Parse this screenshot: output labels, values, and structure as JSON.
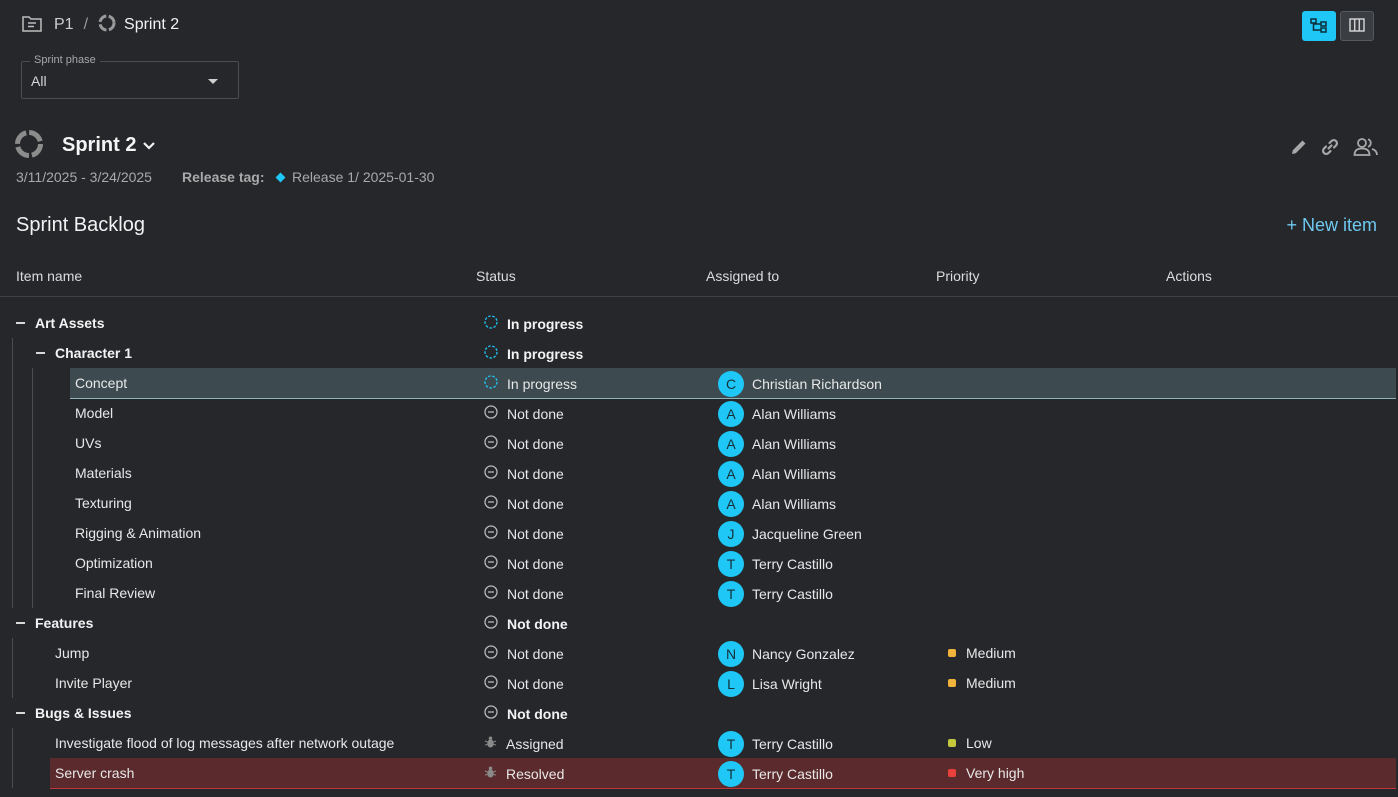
{
  "breadcrumb": {
    "project": "P1",
    "separator": "/",
    "current": "Sprint 2"
  },
  "filter": {
    "label": "Sprint phase",
    "value": "All"
  },
  "sprint": {
    "title": "Sprint 2",
    "dates": "3/11/2025 - 3/24/2025",
    "release_label": "Release tag:",
    "release_value": "Release 1/ 2025-01-30"
  },
  "backlog": {
    "title": "Sprint Backlog",
    "new_item": "+ New item"
  },
  "columns": {
    "name": "Item name",
    "status": "Status",
    "assigned": "Assigned to",
    "priority": "Priority",
    "actions": "Actions"
  },
  "colors": {
    "accent": "#1ec7f5",
    "selected_row": "#3d4a4f",
    "error_row": "#5a2a2c",
    "medium": "#f2b33d",
    "low": "#c3c93b",
    "very_high": "#e8413b"
  },
  "rows": [
    {
      "name": "Art Assets",
      "status": "In progress",
      "status_icon": "in-progress-icon",
      "group": true
    },
    {
      "name": "Character 1",
      "status": "In progress",
      "status_icon": "in-progress-icon",
      "group": true
    },
    {
      "name": "Concept",
      "status": "In progress",
      "status_icon": "in-progress-icon",
      "initial": "C",
      "assignee": "Christian Richardson"
    },
    {
      "name": "Model",
      "status": "Not done",
      "status_icon": "not-done-icon",
      "initial": "A",
      "assignee": "Alan Williams"
    },
    {
      "name": "UVs",
      "status": "Not done",
      "status_icon": "not-done-icon",
      "initial": "A",
      "assignee": "Alan Williams"
    },
    {
      "name": "Materials",
      "status": "Not done",
      "status_icon": "not-done-icon",
      "initial": "A",
      "assignee": "Alan Williams"
    },
    {
      "name": "Texturing",
      "status": "Not done",
      "status_icon": "not-done-icon",
      "initial": "A",
      "assignee": "Alan Williams"
    },
    {
      "name": "Rigging & Animation",
      "status": "Not done",
      "status_icon": "not-done-icon",
      "initial": "J",
      "assignee": "Jacqueline Green"
    },
    {
      "name": "Optimization",
      "status": "Not done",
      "status_icon": "not-done-icon",
      "initial": "T",
      "assignee": "Terry Castillo"
    },
    {
      "name": "Final Review",
      "status": "Not done",
      "status_icon": "not-done-icon",
      "initial": "T",
      "assignee": "Terry Castillo"
    },
    {
      "name": "Features",
      "status": "Not done",
      "status_icon": "not-done-icon",
      "group": true
    },
    {
      "name": "Jump",
      "status": "Not done",
      "status_icon": "not-done-icon",
      "initial": "N",
      "assignee": "Nancy Gonzalez",
      "priority": "Medium"
    },
    {
      "name": "Invite Player",
      "status": "Not done",
      "status_icon": "not-done-icon",
      "initial": "L",
      "assignee": "Lisa Wright",
      "priority": "Medium"
    },
    {
      "name": "Bugs & Issues",
      "status": "Not done",
      "status_icon": "not-done-icon",
      "group": true
    },
    {
      "name": "Investigate flood of log messages after network outage",
      "status": "Assigned",
      "status_icon": "bug-icon",
      "initial": "T",
      "assignee": "Terry Castillo",
      "priority": "Low"
    },
    {
      "name": "Server crash",
      "status": "Resolved",
      "status_icon": "bug-icon",
      "initial": "T",
      "assignee": "Terry Castillo",
      "priority": "Very high"
    }
  ]
}
